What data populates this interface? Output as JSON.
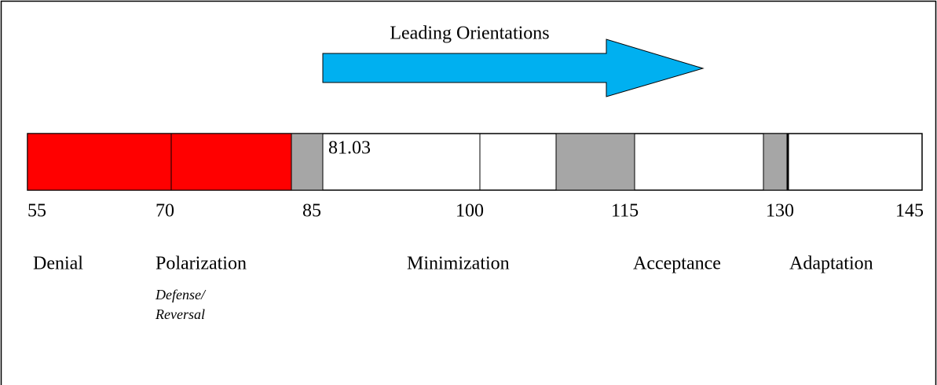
{
  "title": "Leading Orientations",
  "score": "81.03",
  "scale": [
    "55",
    "70",
    "85",
    "100",
    "115",
    "130",
    "145"
  ],
  "stages": [
    "Denial",
    "Polarization",
    "Minimization",
    "Acceptance",
    "Adaptation"
  ],
  "polarization_sub": [
    "Defense/",
    "Reversal"
  ]
}
